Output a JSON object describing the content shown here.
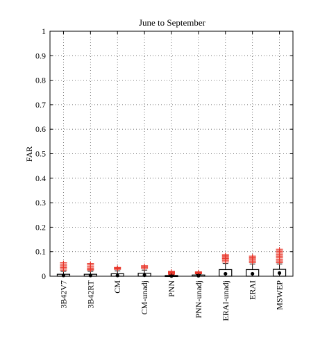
{
  "chart_data": {
    "type": "box",
    "title": "June to September",
    "xlabel": "",
    "ylabel": "FAR",
    "ylim": [
      0,
      1
    ],
    "yticks": [
      "0",
      "0.1",
      "0.2",
      "0.3",
      "0.4",
      "0.5",
      "0.6",
      "0.7",
      "0.8",
      "0.9",
      "1"
    ],
    "grid": true,
    "categories": [
      "3B42V7",
      "3B42RT",
      "CM",
      "CM-unadj",
      "PNN",
      "PNN-unadj",
      "ERAI-unadj",
      "ERAI",
      "MSWEP"
    ],
    "boxes": [
      {
        "q1": 0.0,
        "median": 0.003,
        "q3": 0.008,
        "whisker_high": 0.02,
        "outliers": [
          0.025,
          0.03,
          0.035,
          0.04,
          0.045,
          0.05,
          0.055
        ]
      },
      {
        "q1": 0.0,
        "median": 0.003,
        "q3": 0.008,
        "whisker_high": 0.02,
        "outliers": [
          0.025,
          0.028,
          0.032,
          0.037,
          0.042,
          0.048,
          0.052
        ]
      },
      {
        "q1": 0.0,
        "median": 0.003,
        "q3": 0.01,
        "whisker_high": 0.022,
        "outliers": [
          0.028,
          0.031,
          0.034,
          0.036
        ]
      },
      {
        "q1": 0.0,
        "median": 0.004,
        "q3": 0.012,
        "whisker_high": 0.025,
        "outliers": [
          0.032,
          0.036,
          0.04,
          0.043
        ]
      },
      {
        "q1": 0.0,
        "median": 0.001,
        "q3": 0.003,
        "whisker_high": 0.006,
        "outliers": [
          0.008,
          0.011,
          0.014,
          0.017,
          0.02
        ]
      },
      {
        "q1": 0.0,
        "median": 0.002,
        "q3": 0.005,
        "whisker_high": 0.008,
        "outliers": [
          0.01,
          0.012,
          0.014,
          0.016,
          0.018
        ]
      },
      {
        "q1": 0.0,
        "median": 0.01,
        "q3": 0.027,
        "whisker_high": 0.052,
        "outliers": [
          0.058,
          0.063,
          0.068,
          0.072,
          0.076,
          0.08,
          0.084,
          0.088
        ]
      },
      {
        "q1": 0.0,
        "median": 0.01,
        "q3": 0.027,
        "whisker_high": 0.05,
        "outliers": [
          0.056,
          0.06,
          0.065,
          0.07,
          0.074,
          0.078,
          0.082
        ]
      },
      {
        "q1": 0.0,
        "median": 0.013,
        "q3": 0.028,
        "whisker_high": 0.05,
        "outliers": [
          0.055,
          0.06,
          0.065,
          0.07,
          0.075,
          0.08,
          0.085,
          0.09,
          0.095,
          0.1,
          0.105,
          0.11
        ]
      }
    ],
    "colors": {
      "outlier": "#e8362a",
      "box": "#000000",
      "grid": "#555555"
    }
  }
}
